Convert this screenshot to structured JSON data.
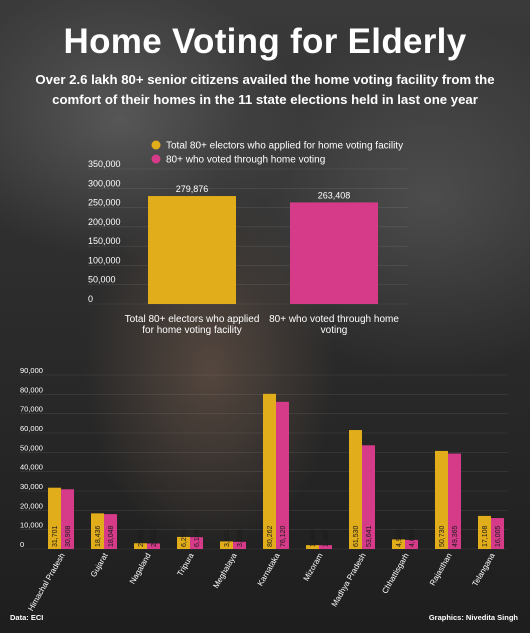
{
  "header": {
    "title": "Home Voting for Elderly",
    "subtitle": "Over 2.6 lakh 80+ senior citizens availed the home voting facility from the comfort of their homes in the 11 state elections held in last one year"
  },
  "footer": {
    "source": "Data: ECI",
    "credit": "Graphics: Nivedita Singh"
  },
  "colors": {
    "applied": "#E2AD1A",
    "voted": "#D63B8A"
  },
  "chart_data": [
    {
      "type": "bar",
      "categories": [
        "Total 80+ electors who applied for home voting facility",
        "80+ who voted through home voting"
      ],
      "category_lines": [
        [
          "Total 80+ electors who applied",
          "for home voting facility"
        ],
        [
          "80+ who voted through home",
          "voting"
        ]
      ],
      "values": [
        279876,
        263408
      ],
      "value_labels": [
        "279,876",
        "263,408"
      ],
      "legend": [
        "Total 80+ electors who applied for home voting facility",
        "80+ who voted through home voting"
      ],
      "legend_position": "top-left",
      "ylim": [
        0,
        350000
      ],
      "yticks": [
        "0",
        "50,000",
        "100,000",
        "150,000",
        "200,000",
        "250,000",
        "300,000",
        "350,000"
      ],
      "grid": true
    },
    {
      "type": "bar",
      "categories": [
        "Himachal Pradesh",
        "Gujarat",
        "Nagaland",
        "Tripura",
        "Meghalaya",
        "Karnataka",
        "Mizoram",
        "Madhya Pradesh",
        "Chhattisgarh",
        "Rajasthan",
        "Telangana"
      ],
      "series": [
        {
          "name": "Total 80+ electors who applied for home voting facility",
          "values": [
            31701,
            18436,
            2982,
            6251,
            3931,
            80262,
            1999,
            61530,
            4946,
            50730,
            17108
          ],
          "value_labels": [
            "31,701",
            "18,436",
            "2,982",
            "6,251",
            "3,931",
            "80,262",
            "1,999",
            "61,530",
            "4,946",
            "50,730",
            "17,108"
          ]
        },
        {
          "name": "80+ who voted through home voting",
          "values": [
            30908,
            18048,
            2851,
            6109,
            3696,
            76120,
            1967,
            53641,
            4698,
            49365,
            16005
          ],
          "value_labels": [
            "30,908",
            "18,048",
            "2,851",
            "6,109",
            "3,696",
            "76,120",
            "1,967",
            "53,641",
            "4,698",
            "49,365",
            "16,005"
          ]
        }
      ],
      "ylim": [
        0,
        90000
      ],
      "yticks": [
        "0",
        "10,000",
        "20,000",
        "30,000",
        "40,000",
        "50,000",
        "60,000",
        "70,000",
        "80,000",
        "90,000"
      ],
      "grid": true
    }
  ]
}
